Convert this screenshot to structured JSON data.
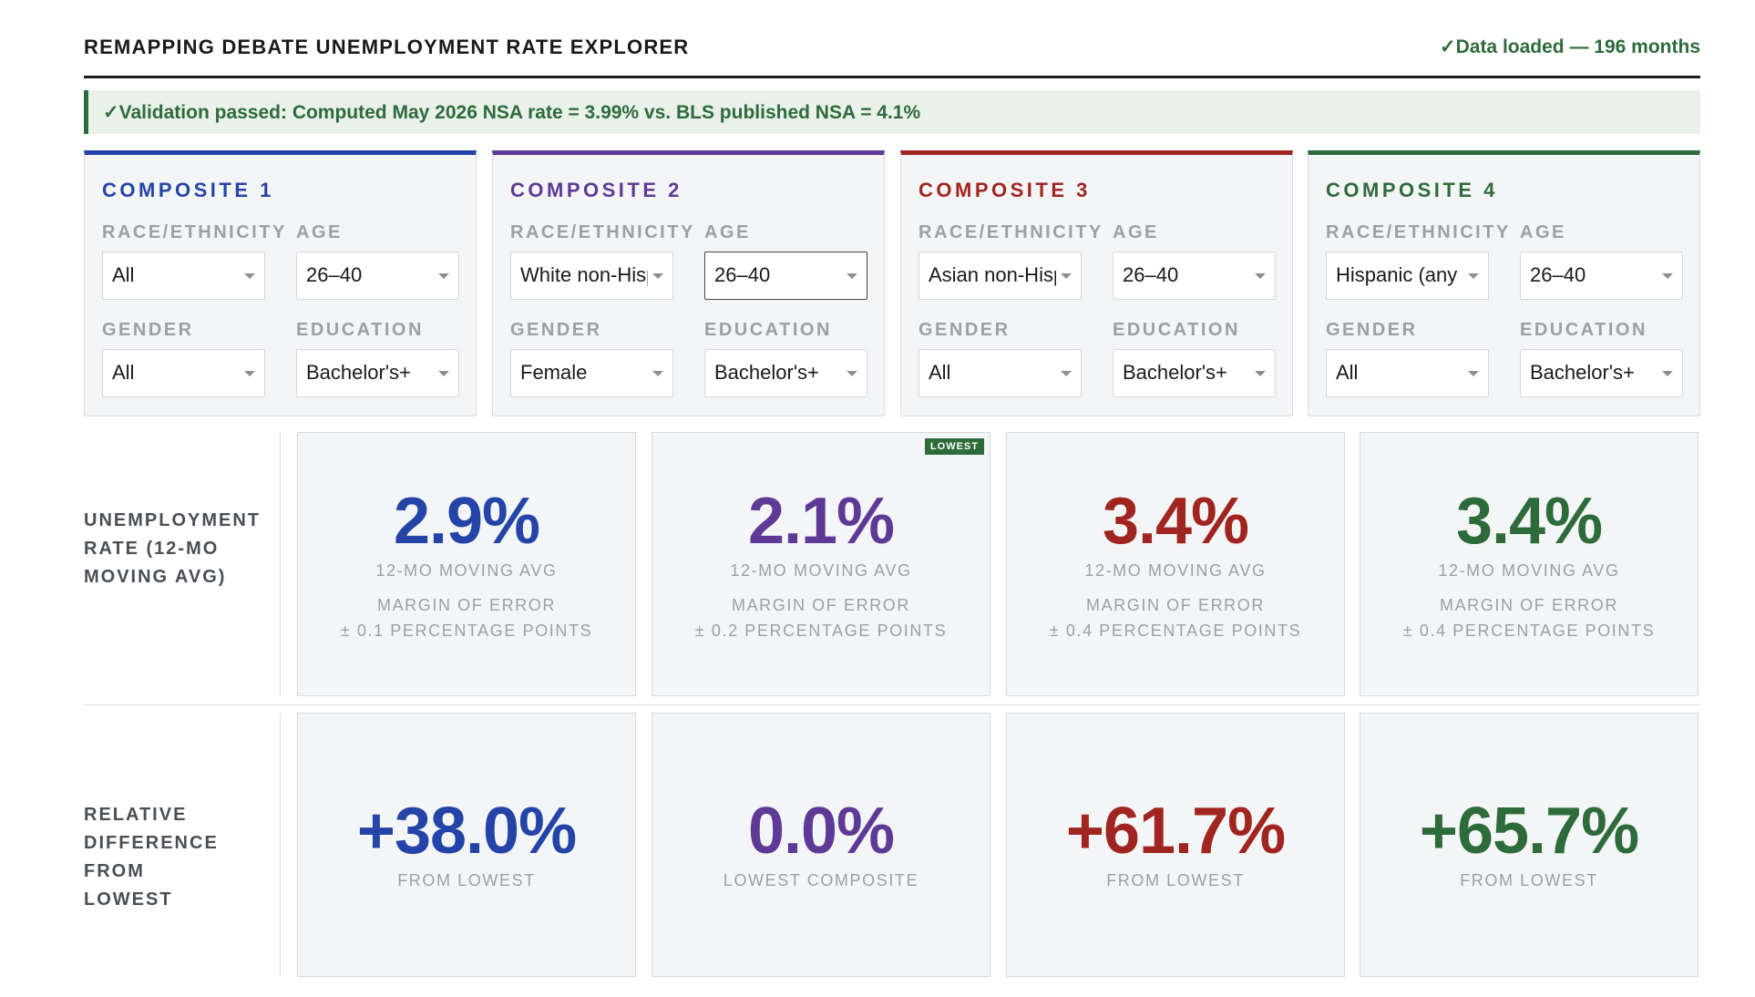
{
  "header": {
    "title": "REMAPPING DEBATE UNEMPLOYMENT RATE EXPLORER",
    "status": "✓Data loaded — 196 months"
  },
  "banner": {
    "text": "✓Validation passed: Computed May 2026 NSA rate = 3.99% vs. BLS published NSA = 4.1%"
  },
  "labels": {
    "race": "RACE/ETHNICITY",
    "age": "AGE",
    "gender": "GENDER",
    "education": "EDUCATION"
  },
  "composites": [
    {
      "title": "COMPOSITE 1",
      "color": "#2544a8",
      "race": "All",
      "age": "26–40",
      "gender": "All",
      "education": "Bachelor's+"
    },
    {
      "title": "COMPOSITE 2",
      "color": "#5e3a96",
      "race": "White non-Hispanic",
      "age": "26–40",
      "gender": "Female",
      "education": "Bachelor's+"
    },
    {
      "title": "COMPOSITE 3",
      "color": "#a02520",
      "race": "Asian non-Hispanic",
      "age": "26–40",
      "gender": "All",
      "education": "Bachelor's+"
    },
    {
      "title": "COMPOSITE 4",
      "color": "#2e6b3a",
      "race": "Hispanic (any race)",
      "age": "26–40",
      "gender": "All",
      "education": "Bachelor's+"
    }
  ],
  "rate_row": {
    "label": "UNEMPLOYMENT RATE (12-MO MOVING AVG)",
    "cards": [
      {
        "value": "2.9%",
        "caption": "12-MO MOVING AVG",
        "moe_title": "MARGIN OF ERROR",
        "moe": "± 0.1 PERCENTAGE POINTS"
      },
      {
        "value": "2.1%",
        "caption": "12-MO MOVING AVG",
        "moe_title": "MARGIN OF ERROR",
        "moe": "± 0.2 PERCENTAGE POINTS",
        "badge": "LOWEST"
      },
      {
        "value": "3.4%",
        "caption": "12-MO MOVING AVG",
        "moe_title": "MARGIN OF ERROR",
        "moe": "± 0.4 PERCENTAGE POINTS"
      },
      {
        "value": "3.4%",
        "caption": "12-MO MOVING AVG",
        "moe_title": "MARGIN OF ERROR",
        "moe": "± 0.4 PERCENTAGE POINTS"
      }
    ]
  },
  "diff_row": {
    "label": "RELATIVE DIFFERENCE FROM LOWEST",
    "cards": [
      {
        "value": "+38.0%",
        "caption": "FROM LOWEST"
      },
      {
        "value": "0.0%",
        "caption": "LOWEST COMPOSITE"
      },
      {
        "value": "+61.7%",
        "caption": "FROM LOWEST"
      },
      {
        "value": "+65.7%",
        "caption": "FROM LOWEST"
      }
    ]
  }
}
